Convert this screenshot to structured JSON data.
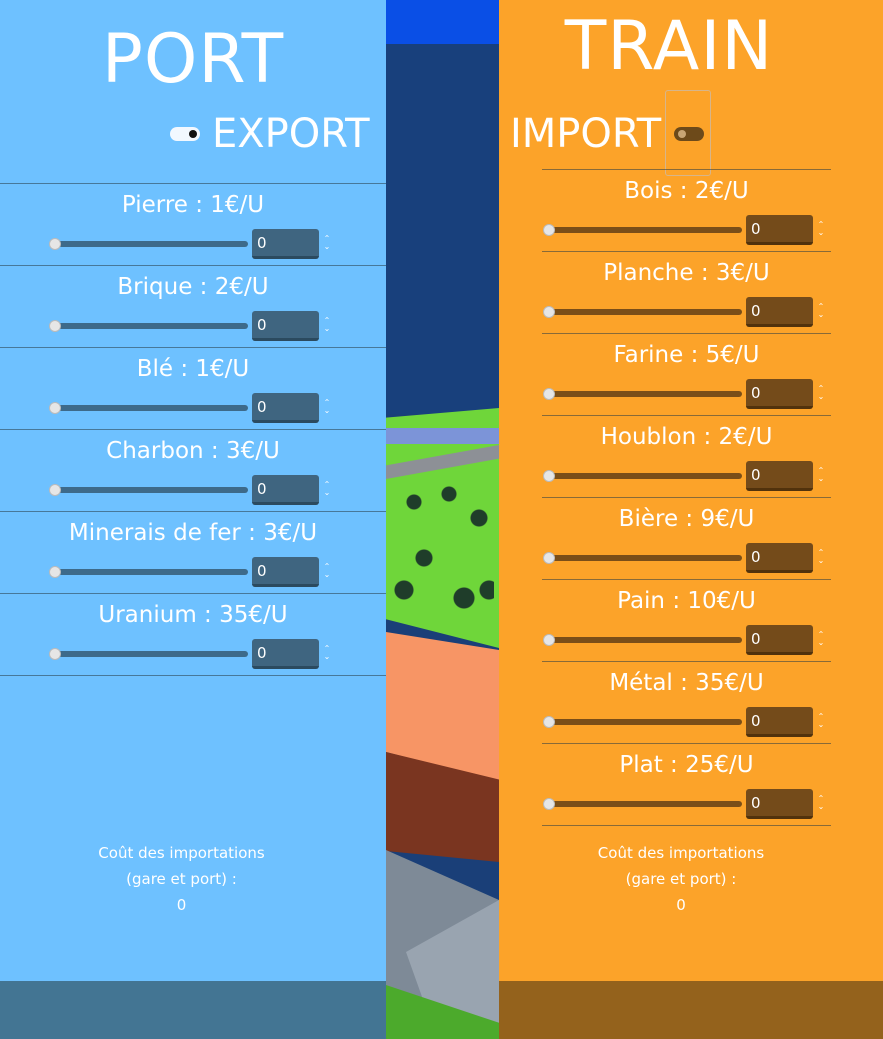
{
  "port": {
    "title": "PORT",
    "mode": "EXPORT",
    "items": [
      {
        "label": "Pierre : 1€/U",
        "value": "0"
      },
      {
        "label": "Brique : 2€/U",
        "value": "0"
      },
      {
        "label": "Blé : 1€/U",
        "value": "0"
      },
      {
        "label": "Charbon : 3€/U",
        "value": "0"
      },
      {
        "label": "Minerais de fer : 3€/U",
        "value": "0"
      },
      {
        "label": "Uranium : 35€/U",
        "value": "0"
      }
    ],
    "cost_line1": "Coût des importations",
    "cost_line2": "(gare et port) :",
    "cost_value": "0"
  },
  "train": {
    "title": "TRAIN",
    "mode": "IMPORT",
    "items": [
      {
        "label": "Bois : 2€/U",
        "value": "0"
      },
      {
        "label": "Planche : 3€/U",
        "value": "0"
      },
      {
        "label": "Farine : 5€/U",
        "value": "0"
      },
      {
        "label": "Houblon : 2€/U",
        "value": "0"
      },
      {
        "label": "Bière : 9€/U",
        "value": "0"
      },
      {
        "label": "Pain : 10€/U",
        "value": "0"
      },
      {
        "label": "Métal : 35€/U",
        "value": "0"
      },
      {
        "label": "Plat : 25€/U",
        "value": "0"
      }
    ],
    "cost_line1": "Coût des importations",
    "cost_line2": "(gare et port) :",
    "cost_value": "0"
  },
  "colors": {
    "port_panel": "#6ec1ff",
    "train_panel": "#fca329",
    "port_footer": "#437593",
    "train_footer": "#94621c"
  },
  "icons": {
    "spin": "up-down-chevron-icon",
    "toggle": "toggle-switch-icon"
  }
}
